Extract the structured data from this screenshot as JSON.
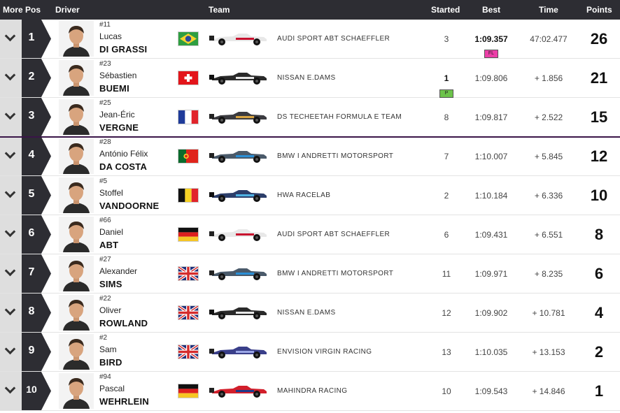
{
  "header": {
    "more": "More",
    "pos": "Pos",
    "driver": "Driver",
    "team": "Team",
    "started": "Started",
    "best": "Best",
    "time": "Time",
    "points": "Points"
  },
  "badges": {
    "fastest_lap": "FL",
    "pole": "P"
  },
  "colors": {
    "header_bg": "#2d2d33",
    "pos_bg": "#2d2d33",
    "fastest_lap": "#ec3fa8",
    "pole": "#6cc34a",
    "divider": "#3a1548"
  },
  "rows": [
    {
      "pos": "1",
      "number": "#11",
      "first": "Lucas",
      "last": "DI GRASSI",
      "nationality": "Brazil",
      "flag_icon": "brazil-flag-icon",
      "car": "audi",
      "team": "AUDI SPORT ABT SCHAEFFLER",
      "started": "3",
      "best": "1:09.357",
      "time": "47:02.477",
      "points": "26",
      "fastest_lap": true,
      "pole": false
    },
    {
      "pos": "2",
      "number": "#23",
      "first": "Sébastien",
      "last": "BUEMI",
      "nationality": "Switzerland",
      "flag_icon": "switzerland-flag-icon",
      "car": "nissan",
      "team": "NISSAN E.DAMS",
      "started": "1",
      "best": "1:09.806",
      "time": "+ 1.856",
      "points": "21",
      "fastest_lap": false,
      "pole": true
    },
    {
      "pos": "3",
      "number": "#25",
      "first": "Jean-Éric",
      "last": "VERGNE",
      "nationality": "France",
      "flag_icon": "france-flag-icon",
      "car": "techeetah",
      "team": "DS TECHEETAH FORMULA E TEAM",
      "started": "8",
      "best": "1:09.817",
      "time": "+ 2.522",
      "points": "15",
      "fastest_lap": false,
      "pole": false
    },
    {
      "pos": "4",
      "number": "#28",
      "first": "António Félix",
      "last": "DA COSTA",
      "nationality": "Portugal",
      "flag_icon": "portugal-flag-icon",
      "car": "bmw",
      "team": "BMW I ANDRETTI MOTORSPORT",
      "started": "7",
      "best": "1:10.007",
      "time": "+ 5.845",
      "points": "12",
      "fastest_lap": false,
      "pole": false
    },
    {
      "pos": "5",
      "number": "#5",
      "first": "Stoffel",
      "last": "VANDOORNE",
      "nationality": "Belgium",
      "flag_icon": "belgium-flag-icon",
      "car": "hwa",
      "team": "HWA RACELAB",
      "started": "2",
      "best": "1:10.184",
      "time": "+ 6.336",
      "points": "10",
      "fastest_lap": false,
      "pole": false
    },
    {
      "pos": "6",
      "number": "#66",
      "first": "Daniel",
      "last": "ABT",
      "nationality": "Germany",
      "flag_icon": "germany-flag-icon",
      "car": "audi",
      "team": "AUDI SPORT ABT SCHAEFFLER",
      "started": "6",
      "best": "1:09.431",
      "time": "+ 6.551",
      "points": "8",
      "fastest_lap": false,
      "pole": false
    },
    {
      "pos": "7",
      "number": "#27",
      "first": "Alexander",
      "last": "SIMS",
      "nationality": "United Kingdom",
      "flag_icon": "uk-flag-icon",
      "car": "bmw",
      "team": "BMW I ANDRETTI MOTORSPORT",
      "started": "11",
      "best": "1:09.971",
      "time": "+ 8.235",
      "points": "6",
      "fastest_lap": false,
      "pole": false
    },
    {
      "pos": "8",
      "number": "#22",
      "first": "Oliver",
      "last": "ROWLAND",
      "nationality": "United Kingdom",
      "flag_icon": "uk-flag-icon",
      "car": "nissan",
      "team": "NISSAN E.DAMS",
      "started": "12",
      "best": "1:09.902",
      "time": "+ 10.781",
      "points": "4",
      "fastest_lap": false,
      "pole": false
    },
    {
      "pos": "9",
      "number": "#2",
      "first": "Sam",
      "last": "BIRD",
      "nationality": "United Kingdom",
      "flag_icon": "uk-flag-icon",
      "car": "virgin",
      "team": "ENVISION VIRGIN RACING",
      "started": "13",
      "best": "1:10.035",
      "time": "+ 13.153",
      "points": "2",
      "fastest_lap": false,
      "pole": false
    },
    {
      "pos": "10",
      "number": "#94",
      "first": "Pascal",
      "last": "WEHRLEIN",
      "nationality": "Germany",
      "flag_icon": "germany-flag-icon",
      "car": "mahindra",
      "team": "MAHINDRA RACING",
      "started": "10",
      "best": "1:09.543",
      "time": "+ 14.846",
      "points": "1",
      "fastest_lap": false,
      "pole": false
    }
  ]
}
